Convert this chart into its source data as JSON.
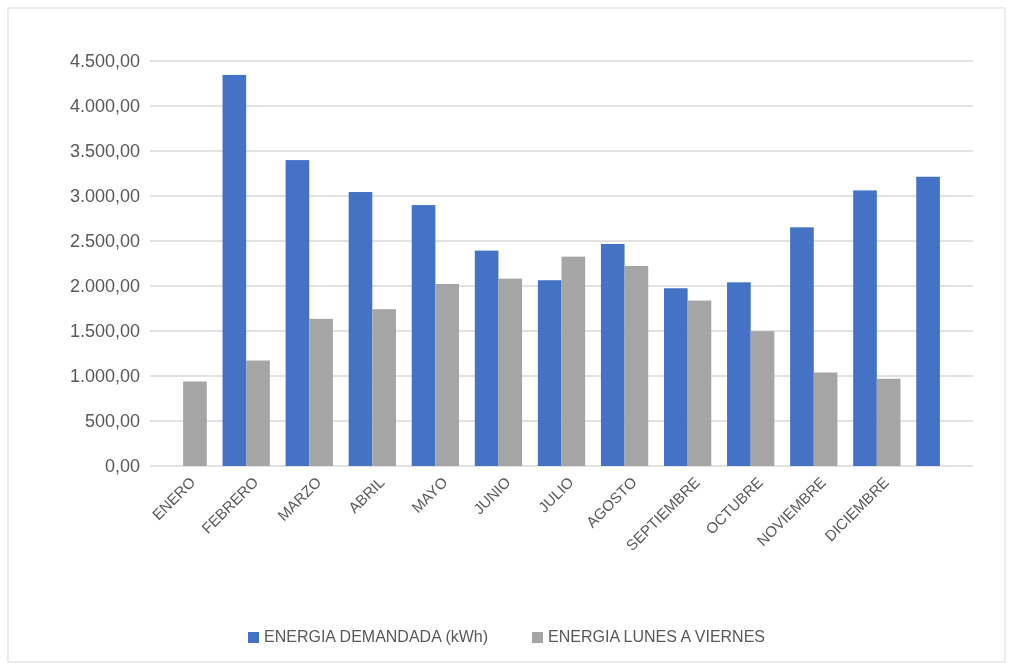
{
  "chart_data": {
    "type": "bar",
    "categories": [
      "ENERO",
      "FEBRERO",
      "MARZO",
      "ABRIL",
      "MAYO",
      "JUNIO",
      "JULIO",
      "AGOSTO",
      "SEPTIEMBRE",
      "OCTUBRE",
      "NOVIEMBRE",
      "DICIEMBRE",
      null
    ],
    "series": [
      {
        "name": "ENERGIA DEMANDADA (kWh)",
        "color": "#4472c4",
        "values": [
          null,
          4345,
          3399,
          3044,
          2899,
          2393,
          2064,
          2467,
          1975,
          2041,
          2652,
          3062,
          3214
        ]
      },
      {
        "name": "ENERGIA LUNES A VIERNES",
        "color": "#a5a5a5",
        "values": [
          939,
          1172,
          1635,
          1742,
          2023,
          2082,
          2326,
          2223,
          1838,
          1498,
          1039,
          969,
          null
        ]
      }
    ],
    "ylim": [
      0,
      4500
    ],
    "yticks": [
      {
        "value": 0,
        "label": "0,00"
      },
      {
        "value": 500,
        "label": "500,00"
      },
      {
        "value": 1000,
        "label": "1.000,00"
      },
      {
        "value": 1500,
        "label": "1.500,00"
      },
      {
        "value": 2000,
        "label": "2.000,00"
      },
      {
        "value": 2500,
        "label": "2.500,00"
      },
      {
        "value": 3000,
        "label": "3.000,00"
      },
      {
        "value": 3500,
        "label": "3.500,00"
      },
      {
        "value": 4000,
        "label": "4.000,00"
      },
      {
        "value": 4500,
        "label": "4.500,00"
      }
    ],
    "grid": "y",
    "legend": "bottom"
  }
}
